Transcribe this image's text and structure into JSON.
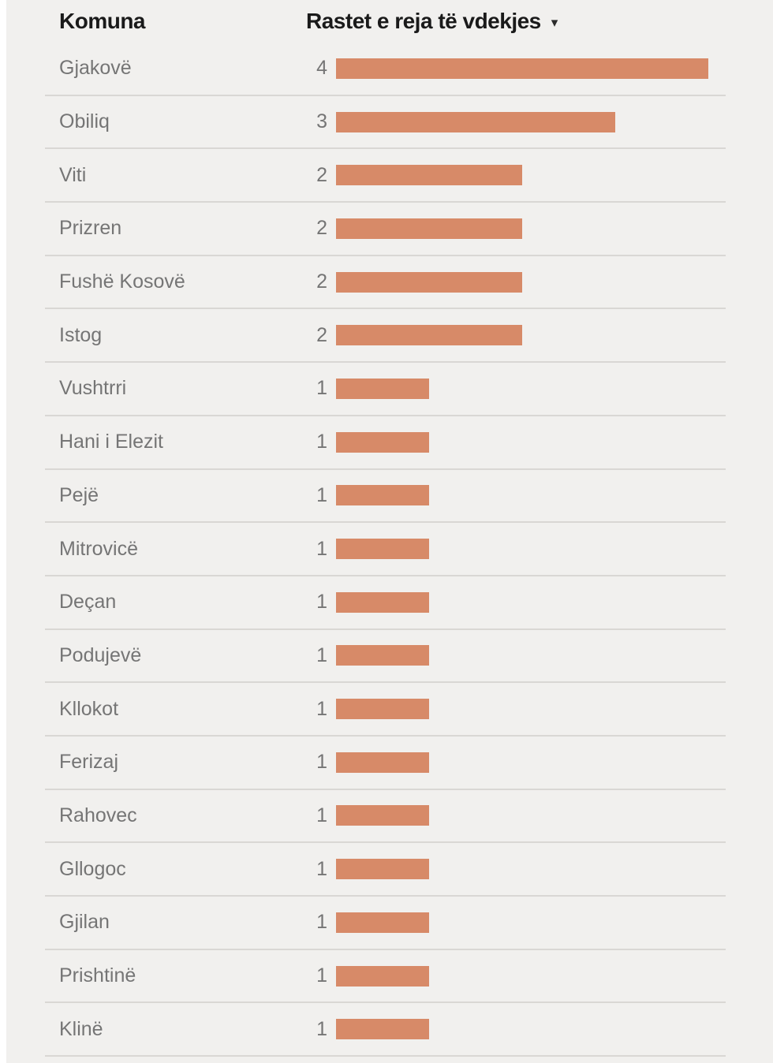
{
  "header": {
    "komuna": "Komuna",
    "value_col": "Rastet e reja të vdekjes",
    "sort_icon": "▾"
  },
  "colors": {
    "bar": "#d78a68",
    "header_text": "#1a1a1a",
    "row_text": "#757575",
    "background": "#f1f0ee",
    "divider": "#d9d7d4"
  },
  "chart_data": {
    "type": "bar",
    "orientation": "horizontal",
    "title": "",
    "xlabel": "Rastet e reja të vdekjes",
    "ylabel": "Komuna",
    "xlim": [
      0,
      4
    ],
    "sort": "descending",
    "grid": false,
    "legend": false,
    "categories": [
      "Gjakovë",
      "Obiliq",
      "Viti",
      "Prizren",
      "Fushë Kosovë",
      "Istog",
      "Vushtrri",
      "Hani i Elezit",
      "Pejë",
      "Mitrovicë",
      "Deçan",
      "Podujevë",
      "Kllokot",
      "Ferizaj",
      "Rahovec",
      "Gllogoc",
      "Gjilan",
      "Prishtinë",
      "Klinë"
    ],
    "values": [
      4,
      3,
      2,
      2,
      2,
      2,
      1,
      1,
      1,
      1,
      1,
      1,
      1,
      1,
      1,
      1,
      1,
      1,
      1
    ]
  }
}
